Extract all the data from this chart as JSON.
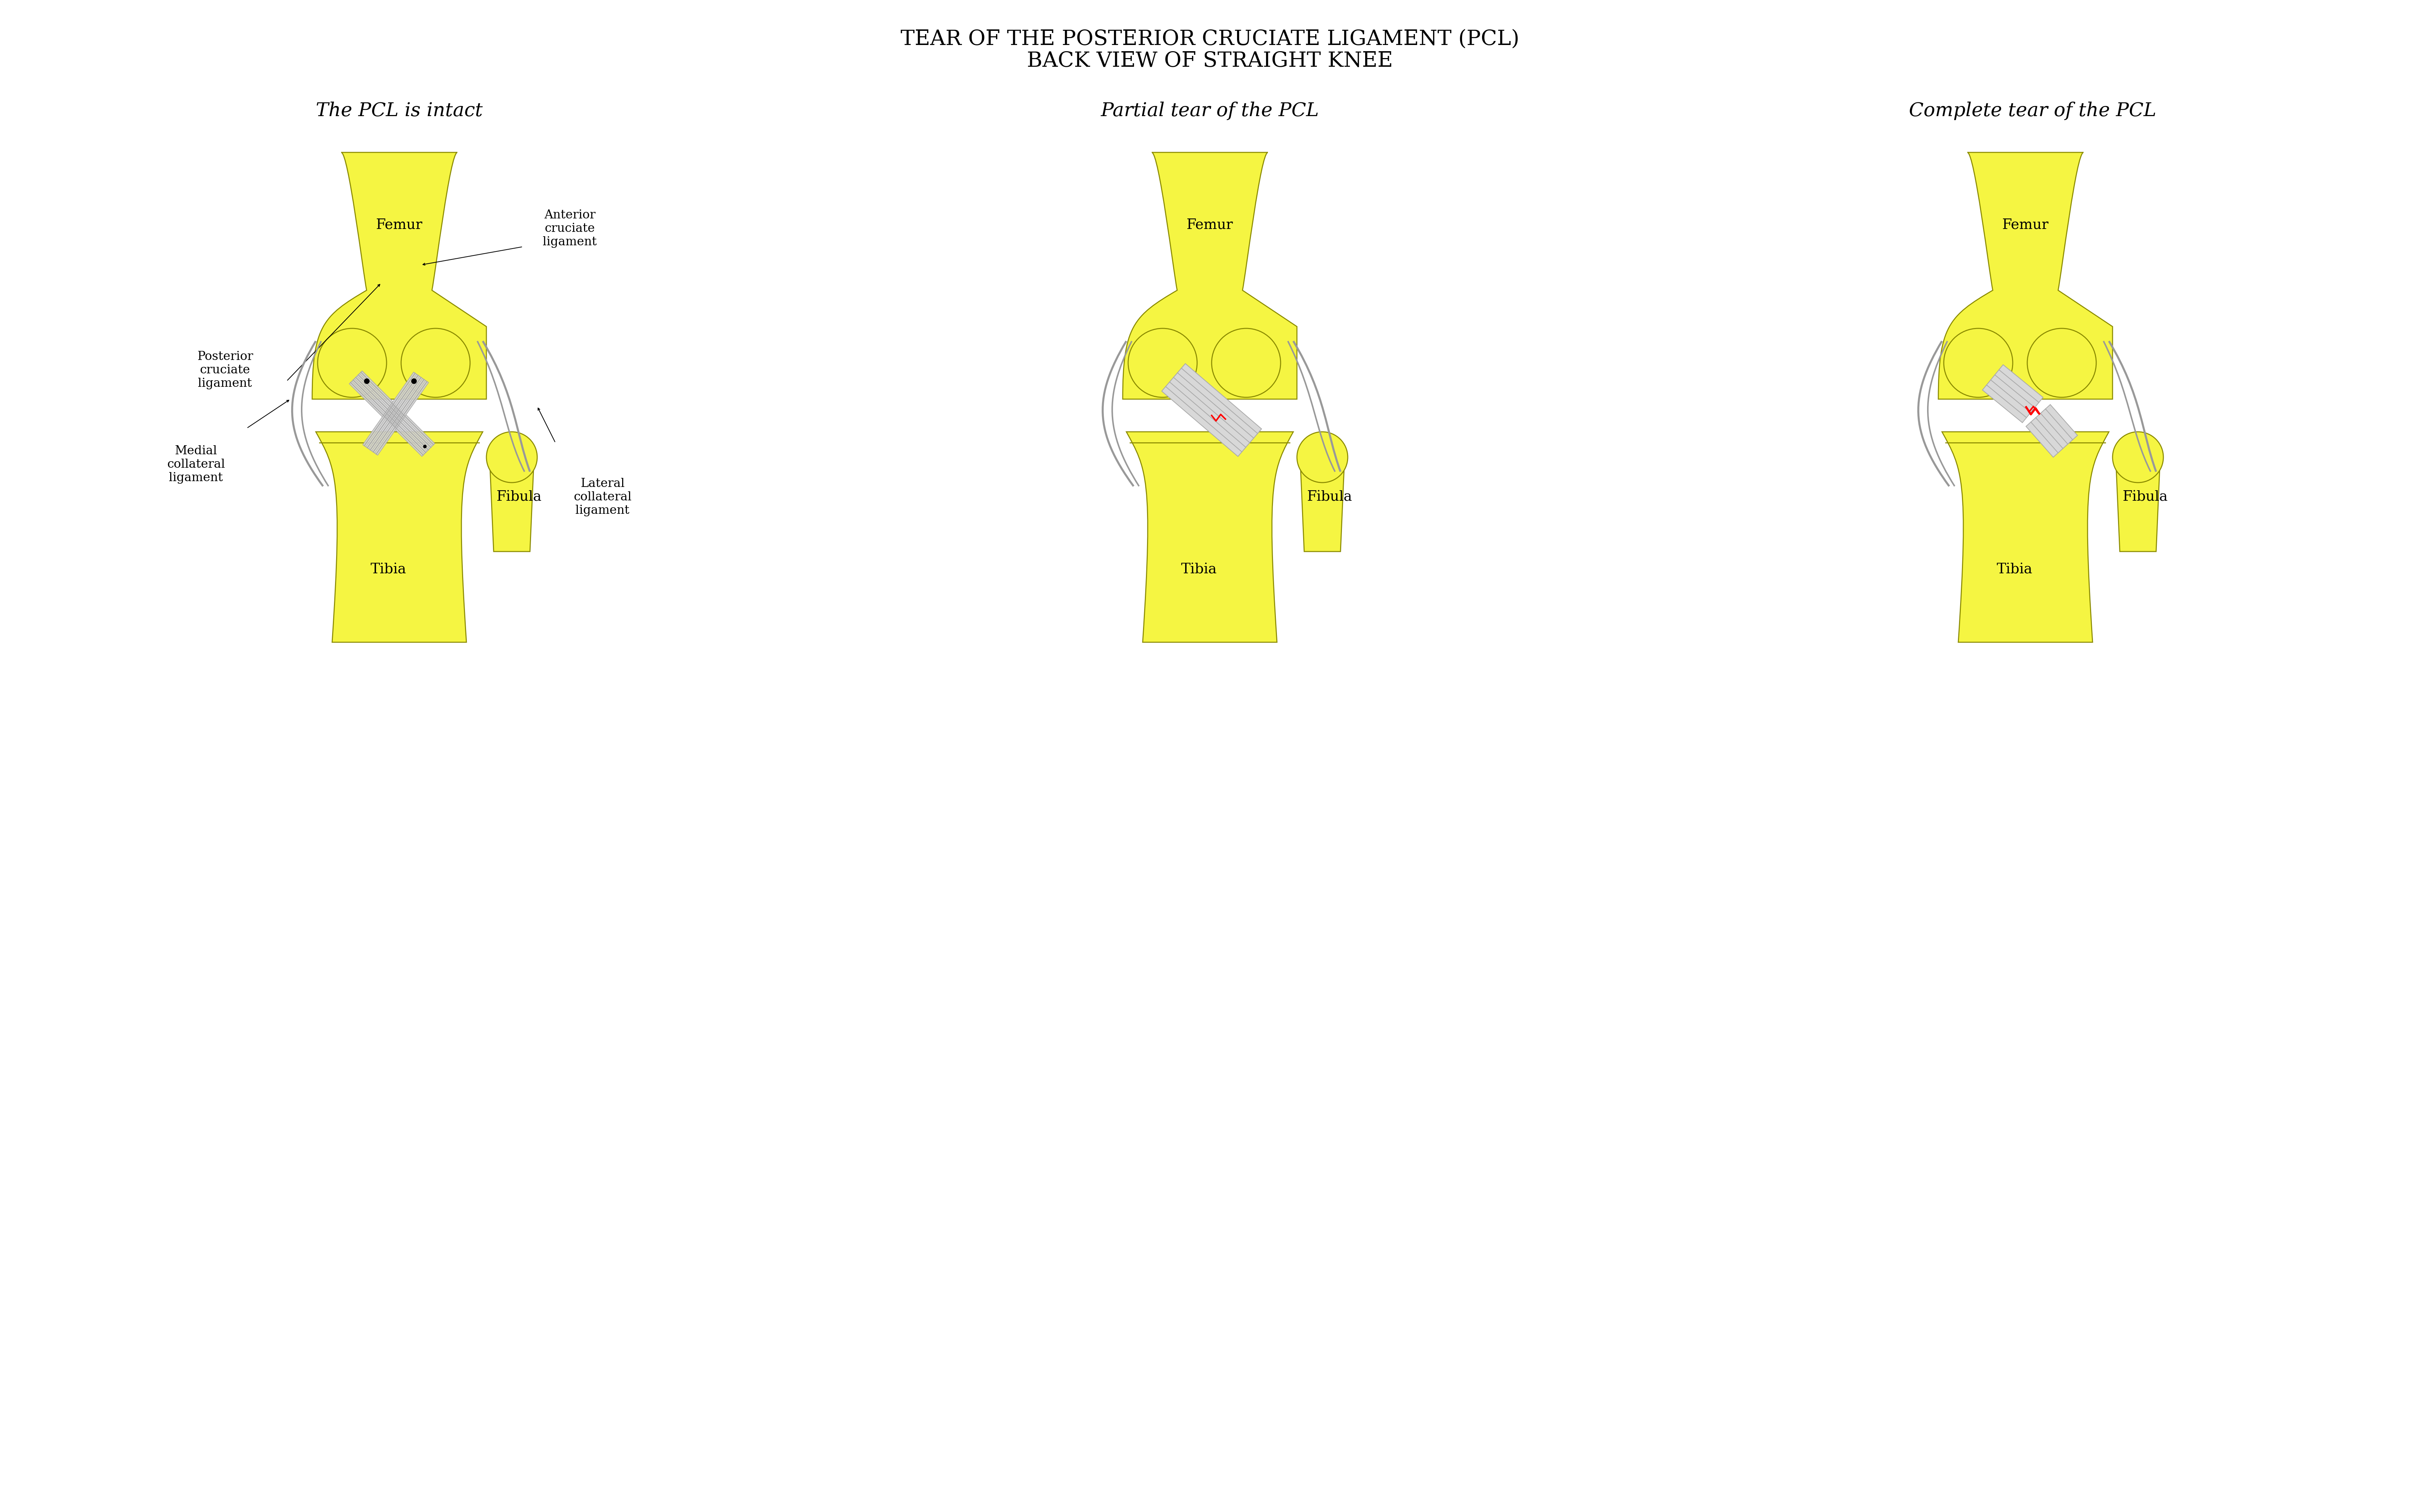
{
  "title_line1": "TEAR OF THE POSTERIOR CRUCIATE LIGAMENT (PCL)",
  "title_line2": "BACK VIEW OF STRAIGHT KNEE",
  "subtitle1": "The PCL is intact",
  "subtitle2": "Partial tear of the PCL",
  "subtitle3": "Complete tear of the PCL",
  "background_color": "#ffffff",
  "bone_fill": "#f5f542",
  "bone_edge": "#8a8a00",
  "ligament_fill": "#e8e8e8",
  "ligament_edge": "#888888",
  "collateral_color": "#aaaaaa",
  "label_fontsize": 28,
  "subtitle_fontsize": 38,
  "title_fontsize": 42,
  "annotation_fontsize": 24,
  "red_tear": "#cc0000"
}
